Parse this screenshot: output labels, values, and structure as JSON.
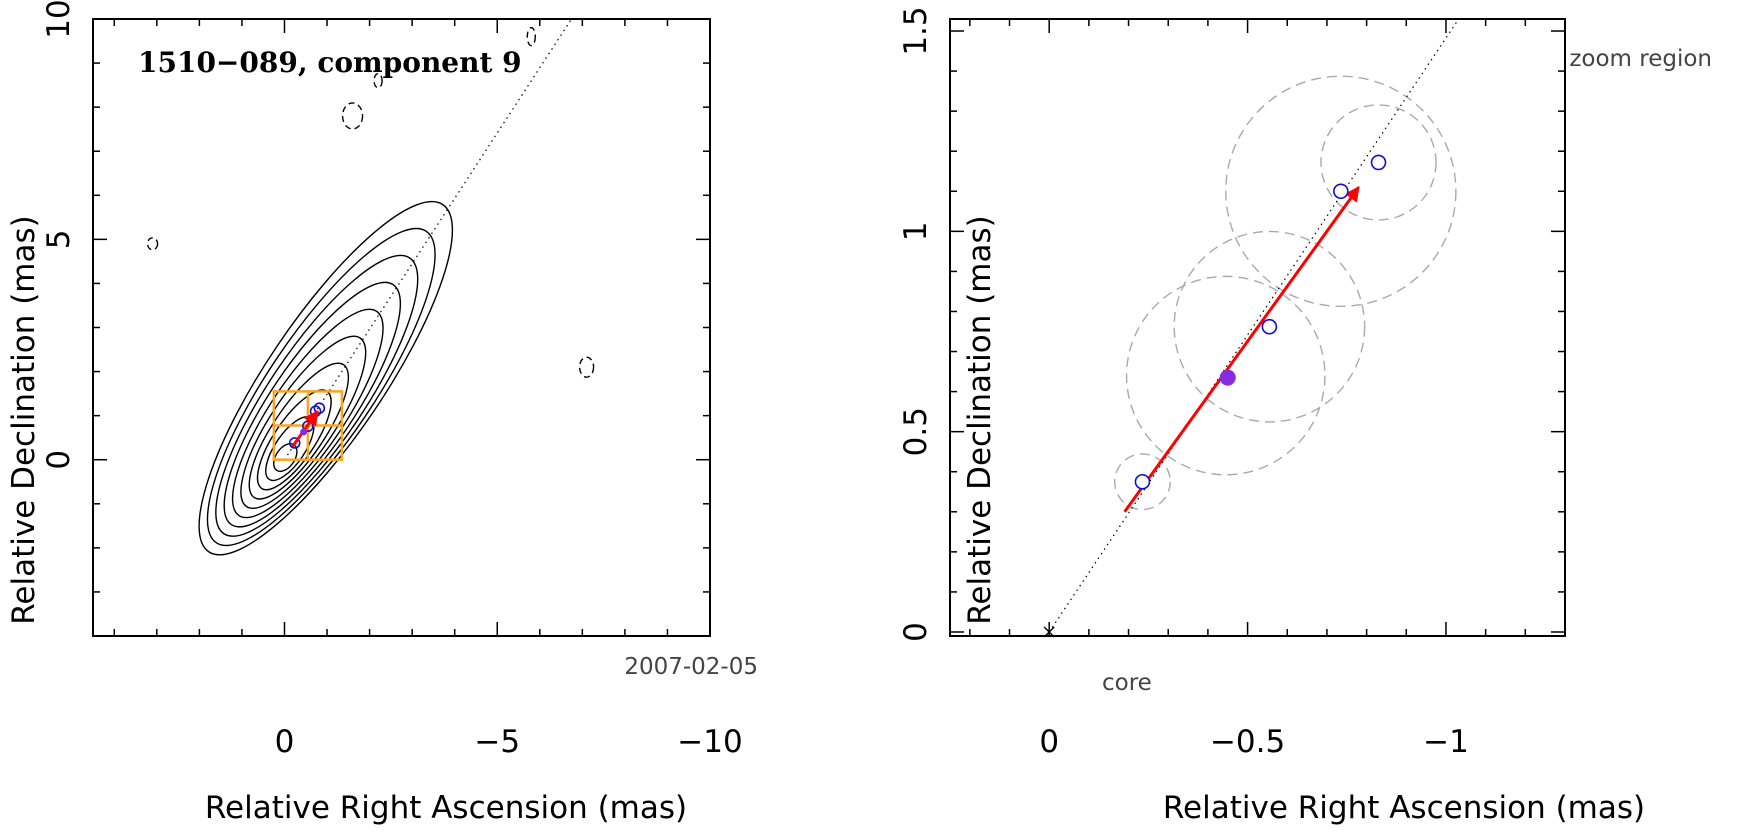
{
  "chart_data": [
    {
      "type": "contour",
      "title": "1510−089, component 9",
      "xlabel": "Relative Right Ascension (mas)",
      "ylabel": "Relative Declination (mas)",
      "xlim": [
        4.5,
        -10
      ],
      "ylim": [
        -4,
        10
      ],
      "xticks": [
        0,
        -5,
        -10
      ],
      "xtick_labels": [
        "0",
        "−5",
        "−10"
      ],
      "yticks": [
        0,
        5,
        10
      ],
      "ytick_labels": [
        "0",
        "5",
        "10"
      ],
      "date_label": "2007-02-05",
      "core": [
        0,
        0
      ],
      "jet_line_angle_deg": 56,
      "contour_levels": 10,
      "components": [
        {
          "x": -0.24,
          "y": 0.38
        },
        {
          "x": -0.55,
          "y": 0.76
        },
        {
          "x": -0.73,
          "y": 1.1
        },
        {
          "x": -0.82,
          "y": 1.17
        }
      ],
      "current_component": {
        "x": -0.45,
        "y": 0.63
      },
      "velocity_arrow": {
        "from": [
          -0.19,
          0.3
        ],
        "to": [
          -0.78,
          1.1
        ]
      },
      "zoom_box": {
        "x": [
          0.25,
          -1.35
        ],
        "y": [
          0,
          1.55
        ]
      },
      "colors": {
        "contour": "#000000",
        "component": "#1010d0",
        "arrow": "#ff0000",
        "zoom_box": "#f5a623"
      }
    },
    {
      "type": "scatter",
      "title": "zoom region",
      "xlabel": "Relative Right Ascension (mas)",
      "ylabel": "Relative Declination (mas)",
      "xlim": [
        0.25,
        -1.3
      ],
      "ylim": [
        -0.01,
        1.53
      ],
      "xticks": [
        0,
        -0.5,
        -1
      ],
      "xtick_labels": [
        "0",
        "−0.5",
        "−1"
      ],
      "yticks": [
        0,
        0.5,
        1,
        1.5
      ],
      "ytick_labels": [
        "0",
        "0.5",
        "1",
        "1.5"
      ],
      "core_label": "core",
      "core": [
        0,
        0
      ],
      "components": [
        {
          "x": -0.235,
          "y": 0.375,
          "radius": 0.07
        },
        {
          "x": -0.555,
          "y": 0.762,
          "radius": 0.24
        },
        {
          "x": -0.735,
          "y": 1.1,
          "radius": 0.29
        },
        {
          "x": -0.83,
          "y": 1.172,
          "radius": 0.145
        }
      ],
      "extra_circles": [
        {
          "x": -0.445,
          "y": 0.64,
          "radius": 0.25
        }
      ],
      "current_component": {
        "x": -0.45,
        "y": 0.635
      },
      "velocity_arrow": {
        "from": [
          -0.19,
          0.3
        ],
        "to": [
          -0.78,
          1.11
        ]
      },
      "colors": {
        "component": "#1010d0",
        "current": "#8a2be2",
        "arrow": "#ff0000",
        "error_circle": "#aaaaaa"
      }
    }
  ]
}
